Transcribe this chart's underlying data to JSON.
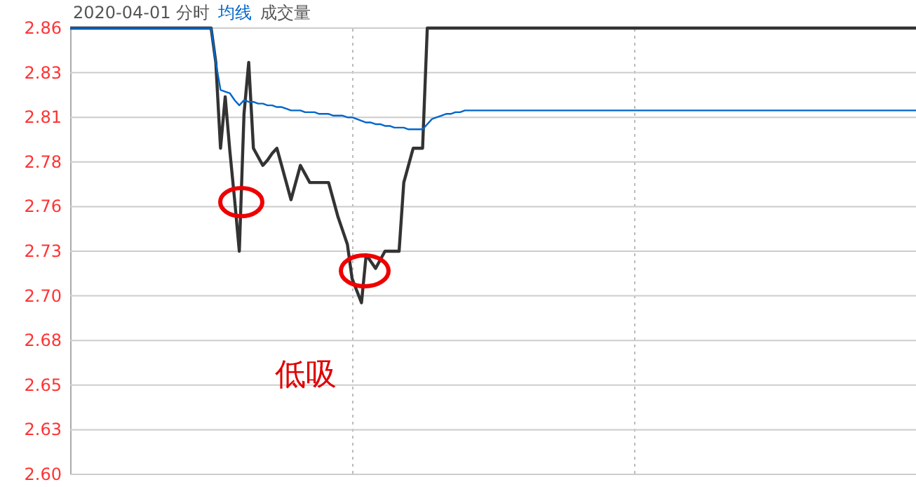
{
  "chart_data": {
    "type": "line",
    "title": "2020-04-01 分时",
    "categories": [
      null,
      null,
      null,
      null,
      null,
      null,
      null,
      null,
      null,
      null,
      null,
      null,
      null,
      null,
      null,
      null,
      null,
      null,
      null,
      null,
      null,
      null,
      null,
      null,
      null,
      null,
      null,
      null,
      null,
      null,
      null,
      null,
      null,
      null,
      null,
      null,
      null,
      null,
      null,
      null,
      null,
      null,
      null,
      null,
      null,
      null,
      null,
      null,
      null,
      null,
      null,
      null,
      null,
      null,
      null,
      null,
      null,
      null,
      null,
      null,
      null,
      null,
      null,
      null,
      null,
      null,
      null,
      null,
      null,
      null,
      null,
      null,
      null,
      null,
      null,
      null,
      null,
      null,
      null,
      null,
      null,
      null,
      null,
      null,
      null,
      null,
      null,
      null,
      null,
      null,
      null,
      null,
      null,
      null,
      null,
      null,
      null,
      null,
      null,
      null,
      null,
      null,
      null,
      null,
      null,
      null,
      null,
      null,
      null,
      null,
      null,
      null,
      null,
      null,
      null,
      null,
      null,
      null,
      null,
      null,
      null,
      null,
      null,
      null,
      null,
      null,
      null,
      null,
      null,
      null,
      null,
      null,
      null,
      null,
      null,
      null,
      null,
      null,
      null,
      null,
      null,
      null,
      null,
      null,
      null,
      null,
      null,
      null,
      null,
      null,
      null,
      null,
      null,
      null,
      null,
      null,
      null,
      null,
      null,
      null,
      null,
      null,
      null,
      null,
      null,
      null,
      null,
      null,
      null,
      null,
      null,
      null,
      null,
      null,
      null,
      null,
      null,
      null,
      null,
      null,
      null
    ],
    "ylim": [
      2.6,
      2.86
    ],
    "yticks": [
      {
        "value": 2.6,
        "label": "2.60"
      },
      {
        "value": 2.626,
        "label": "2.63"
      },
      {
        "value": 2.652,
        "label": "2.65"
      },
      {
        "value": 2.678,
        "label": "2.68"
      },
      {
        "value": 2.704,
        "label": "2.70"
      },
      {
        "value": 2.73,
        "label": "2.73"
      },
      {
        "value": 2.756,
        "label": "2.76"
      },
      {
        "value": 2.782,
        "label": "2.78"
      },
      {
        "value": 2.808,
        "label": "2.81"
      },
      {
        "value": 2.834,
        "label": "2.83"
      },
      {
        "value": 2.86,
        "label": "2.86"
      }
    ],
    "grid": true,
    "annotations": [
      "成交量",
      "低吸"
    ],
    "series": [
      {
        "color": "#333333",
        "values": [
          2.86,
          2.86,
          2.86,
          2.86,
          2.86,
          2.86,
          2.86,
          2.86,
          2.86,
          2.86,
          2.86,
          2.86,
          2.86,
          2.86,
          2.86,
          2.86,
          2.86,
          2.86,
          2.86,
          2.86,
          2.86,
          2.86,
          2.86,
          2.86,
          2.86,
          2.86,
          2.86,
          2.86,
          2.86,
          2.86,
          2.86,
          2.84,
          2.79,
          2.82,
          2.788,
          2.76,
          2.73,
          2.81,
          2.84,
          2.79,
          2.785,
          2.78,
          2.783,
          2.787,
          2.79,
          2.78,
          2.77,
          2.76,
          2.77,
          2.78,
          2.775,
          2.77,
          2.77,
          2.77,
          2.77,
          2.77,
          2.76,
          2.75,
          2.742,
          2.734,
          2.714,
          2.707,
          2.7,
          2.728,
          2.724,
          2.72,
          2.725,
          2.73,
          2.73,
          2.73,
          2.73,
          2.77,
          2.78,
          2.79,
          2.79,
          2.79,
          2.86,
          2.86,
          2.86,
          2.86,
          2.86,
          2.86,
          2.86,
          2.86,
          2.86,
          2.86,
          2.86,
          2.86,
          2.86,
          2.86,
          2.86,
          2.86,
          2.86,
          2.86,
          2.86,
          2.86,
          2.86,
          2.86,
          2.86,
          2.86,
          2.86,
          2.86,
          2.86,
          2.86,
          2.86,
          2.86,
          2.86,
          2.86,
          2.86,
          2.86,
          2.86,
          2.86,
          2.86,
          2.86,
          2.86,
          2.86,
          2.86,
          2.86,
          2.86,
          2.86,
          2.86,
          2.86,
          2.86,
          2.86,
          2.86,
          2.86,
          2.86,
          2.86,
          2.86,
          2.86,
          2.86,
          2.86,
          2.86,
          2.86,
          2.86,
          2.86,
          2.86,
          2.86,
          2.86,
          2.86,
          2.86,
          2.86,
          2.86,
          2.86,
          2.86,
          2.86,
          2.86,
          2.86,
          2.86,
          2.86,
          2.86,
          2.86,
          2.86,
          2.86,
          2.86,
          2.86,
          2.86,
          2.86,
          2.86,
          2.86,
          2.86,
          2.86,
          2.86,
          2.86,
          2.86,
          2.86,
          2.86,
          2.86,
          2.86,
          2.86,
          2.86,
          2.86,
          2.86,
          2.86,
          2.86,
          2.86,
          2.86,
          2.86,
          2.86,
          2.86,
          2.86
        ]
      },
      {
        "name": "均线",
        "color": "#0066cc",
        "values": [
          2.86,
          2.86,
          2.86,
          2.86,
          2.86,
          2.86,
          2.86,
          2.86,
          2.86,
          2.86,
          2.86,
          2.86,
          2.86,
          2.86,
          2.86,
          2.86,
          2.86,
          2.86,
          2.86,
          2.86,
          2.86,
          2.86,
          2.86,
          2.86,
          2.86,
          2.86,
          2.86,
          2.86,
          2.86,
          2.86,
          2.86,
          2.84,
          2.824,
          2.823,
          2.822,
          2.818,
          2.815,
          2.818,
          2.817,
          2.817,
          2.816,
          2.816,
          2.815,
          2.815,
          2.814,
          2.814,
          2.813,
          2.812,
          2.812,
          2.812,
          2.811,
          2.811,
          2.811,
          2.81,
          2.81,
          2.81,
          2.809,
          2.809,
          2.809,
          2.808,
          2.808,
          2.807,
          2.806,
          2.805,
          2.805,
          2.804,
          2.804,
          2.803,
          2.803,
          2.802,
          2.802,
          2.802,
          2.801,
          2.801,
          2.801,
          2.801,
          2.804,
          2.807,
          2.808,
          2.809,
          2.81,
          2.81,
          2.811,
          2.811,
          2.812,
          2.812,
          2.812,
          2.812,
          2.812,
          2.812,
          2.812,
          2.812,
          2.812,
          2.812,
          2.812,
          2.812,
          2.812,
          2.812,
          2.812,
          2.812,
          2.812,
          2.812,
          2.812,
          2.812,
          2.812,
          2.812,
          2.812,
          2.812,
          2.812,
          2.812,
          2.812,
          2.812,
          2.812,
          2.812,
          2.812,
          2.812,
          2.812,
          2.812,
          2.812,
          2.812,
          2.812,
          2.812,
          2.812,
          2.812,
          2.812,
          2.812,
          2.812,
          2.812,
          2.812,
          2.812,
          2.812,
          2.812,
          2.812,
          2.812,
          2.812,
          2.812,
          2.812,
          2.812,
          2.812,
          2.812,
          2.812,
          2.812,
          2.812,
          2.812,
          2.812,
          2.812,
          2.812,
          2.812,
          2.812,
          2.812,
          2.812,
          2.812,
          2.812,
          2.812,
          2.812,
          2.812,
          2.812,
          2.812,
          2.812,
          2.812,
          2.812,
          2.812,
          2.812,
          2.812,
          2.812,
          2.812,
          2.812,
          2.812,
          2.812,
          2.812,
          2.812,
          2.812,
          2.812,
          2.812,
          2.812,
          2.812,
          2.812,
          2.812,
          2.812,
          2.812,
          2.812
        ]
      }
    ]
  }
}
